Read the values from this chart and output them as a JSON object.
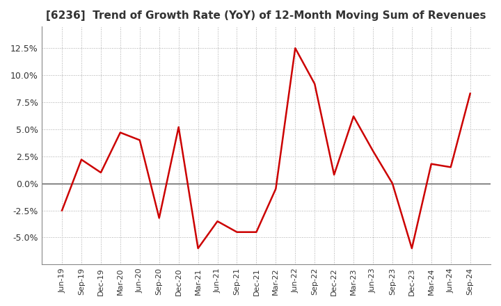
{
  "title": "[6236]  Trend of Growth Rate (YoY) of 12-Month Moving Sum of Revenues",
  "title_fontsize": 11,
  "line_color": "#cc0000",
  "background_color": "#ffffff",
  "grid_color": "#aaaaaa",
  "zero_line_color": "#555555",
  "x_labels": [
    "Jun-19",
    "Sep-19",
    "Dec-19",
    "Mar-20",
    "Jun-20",
    "Sep-20",
    "Dec-20",
    "Mar-21",
    "Jun-21",
    "Sep-21",
    "Dec-21",
    "Mar-22",
    "Jun-22",
    "Sep-22",
    "Dec-22",
    "Mar-23",
    "Jun-23",
    "Sep-23",
    "Dec-23",
    "Mar-24",
    "Jun-24",
    "Sep-24"
  ],
  "y_values": [
    -2.5,
    2.2,
    1.0,
    4.7,
    4.0,
    -3.2,
    5.2,
    -6.0,
    -3.5,
    -4.5,
    -4.5,
    -0.5,
    12.5,
    9.2,
    0.8,
    6.2,
    3.0,
    0.0,
    -6.0,
    1.8,
    1.5,
    8.3
  ],
  "ylim": [
    -7.5,
    14.5
  ],
  "yticks": [
    -5.0,
    -2.5,
    0.0,
    2.5,
    5.0,
    7.5,
    10.0,
    12.5
  ]
}
